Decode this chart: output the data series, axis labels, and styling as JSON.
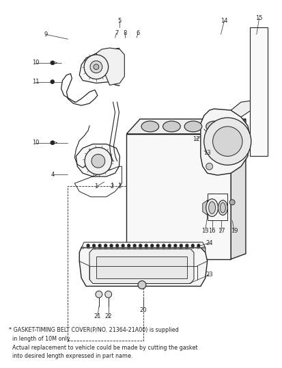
{
  "bg_color": "#ffffff",
  "lc": "#222222",
  "footnote_line1": "* GASKET-TIMING BELT COVER(P/NO. 21364-21A00) is supplied",
  "footnote_line2": "  in length of 10M only.",
  "footnote_line3": "  Actual replacement to vehicle could be made by cutting the gasket",
  "footnote_line4": "  into desired length expressed in part name."
}
